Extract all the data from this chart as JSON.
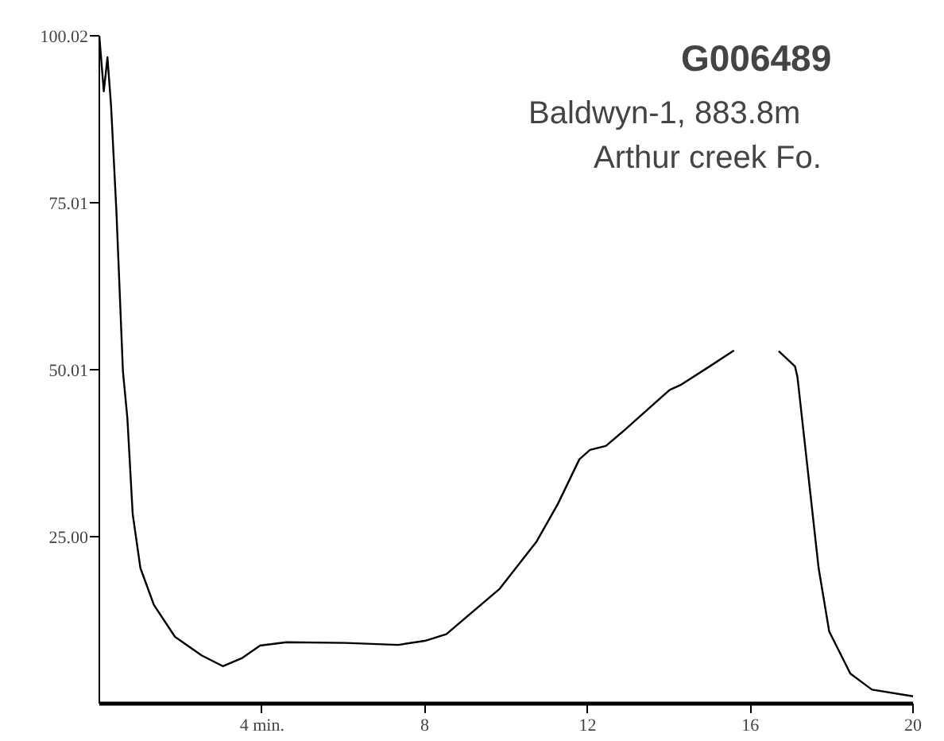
{
  "chart_data": {
    "type": "line",
    "title": "G006489",
    "annotations": [
      "Baldwyn-1, 883.8m",
      "Arthur creek Fo."
    ],
    "x": [
      0,
      0.11,
      0.2,
      0.29,
      0.42,
      0.58,
      0.69,
      0.82,
      1.01,
      1.34,
      1.86,
      2.52,
      3.04,
      3.5,
      3.95,
      4.6,
      6.05,
      7.35,
      8.0,
      8.53,
      9.84,
      10.75,
      11.27,
      11.8,
      12.06,
      12.45,
      12.84,
      14.02,
      14.28,
      15.0,
      15.6,
      16.1,
      16.7,
      17.1,
      17.16,
      17.42,
      17.68,
      17.94,
      18.46,
      18.99,
      20.0
    ],
    "series": [
      {
        "color": "#000000",
        "values": [
          100.0,
          91.7,
          96.8,
          89.4,
          73.7,
          49.8,
          42.7,
          28.4,
          20.3,
          14.8,
          10.0,
          7.2,
          5.6,
          6.8,
          8.7,
          9.2,
          9.1,
          8.8,
          9.4,
          10.4,
          17.2,
          24.3,
          29.9,
          36.6,
          38.0,
          38.6,
          40.6,
          47.0,
          47.7,
          50.5,
          52.9,
          null,
          52.8,
          50.5,
          48.9,
          34.6,
          20.3,
          10.8,
          4.5,
          2.1,
          1.1
        ]
      }
    ],
    "xlim": [
      0,
      20
    ],
    "ylim": [
      0,
      100.02
    ],
    "xticks": [
      {
        "value": 4,
        "label": "4 min."
      },
      8,
      12,
      16,
      20
    ],
    "yticks": [
      {
        "value": 25.0,
        "label": "25.00"
      },
      {
        "value": 50.01,
        "label": "50.01"
      },
      {
        "value": 75.01,
        "label": "75.01"
      },
      {
        "value": 100.02,
        "label": "100.02"
      }
    ],
    "line_style": "solid",
    "grid": false
  }
}
